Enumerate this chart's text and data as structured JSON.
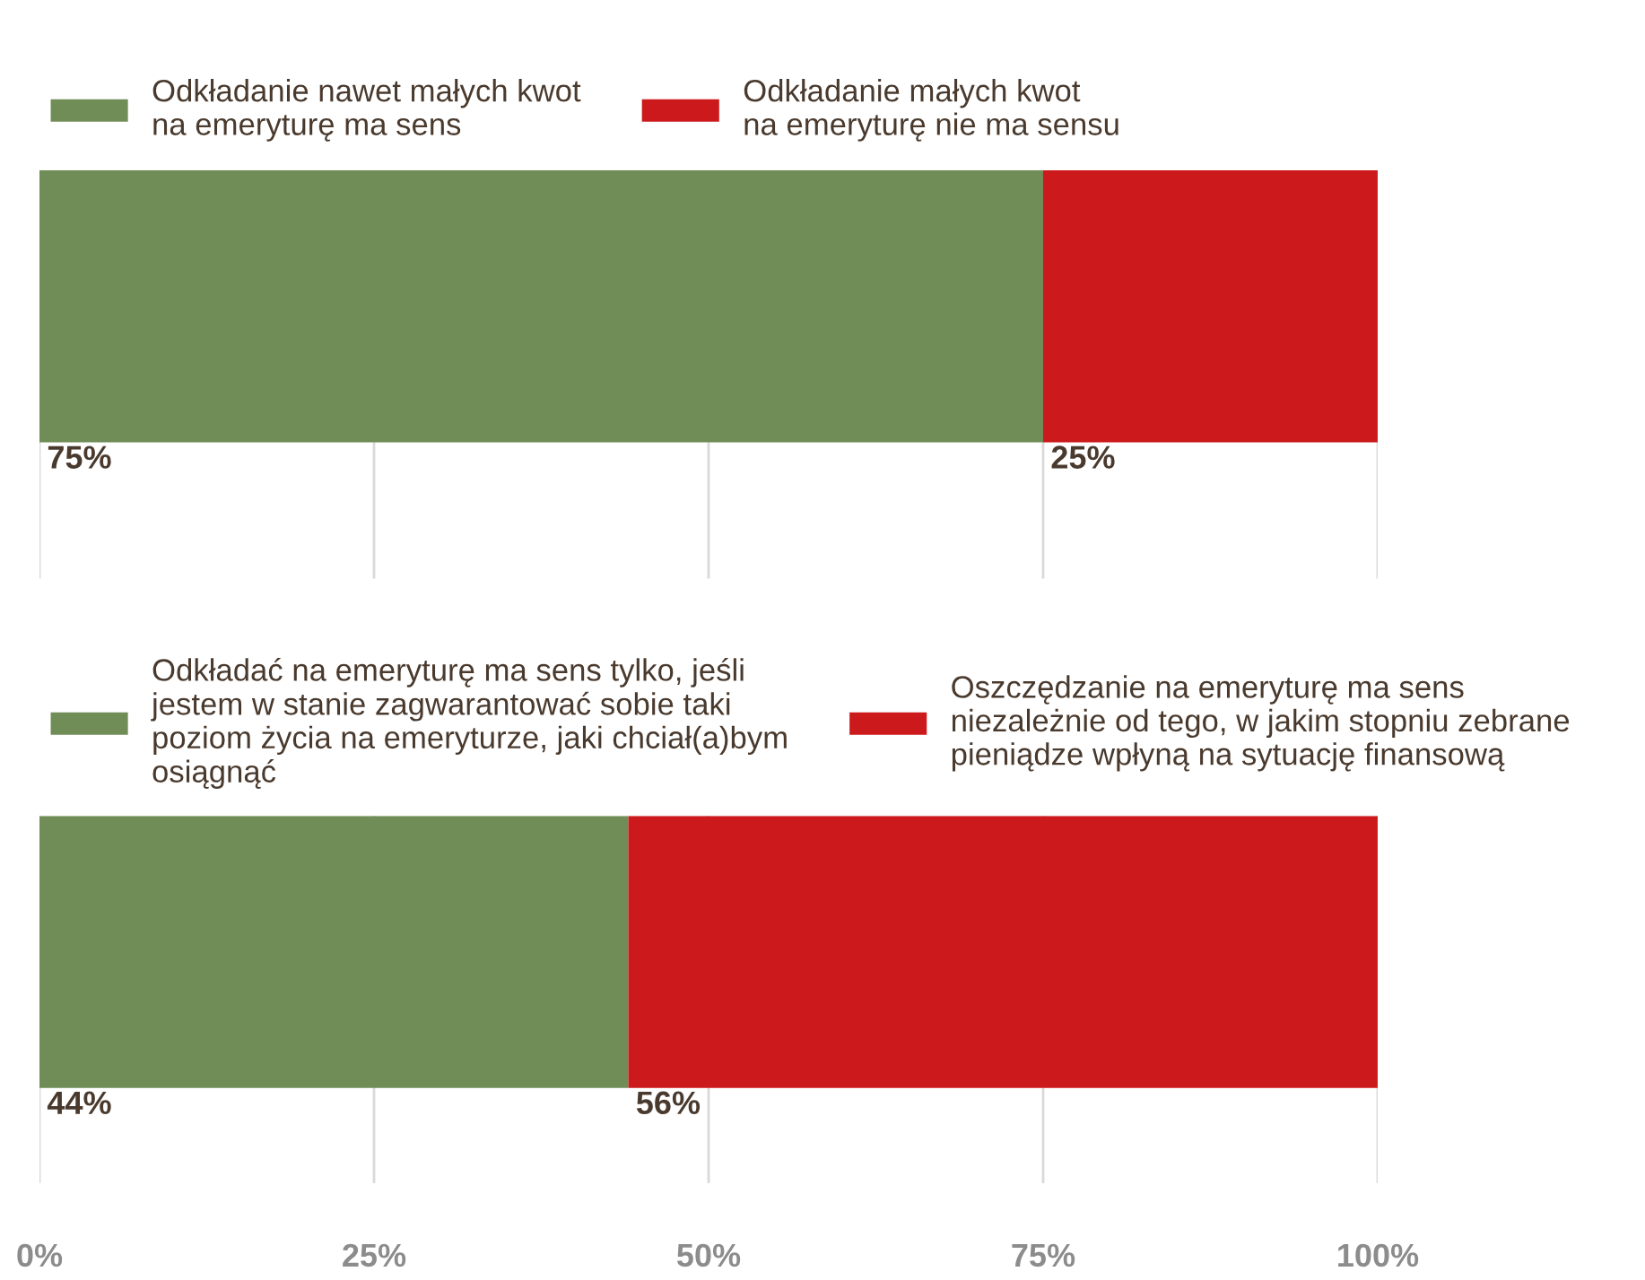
{
  "chart_data": [
    {
      "type": "bar",
      "orientation": "horizontal",
      "stacked": true,
      "categories": [
        null
      ],
      "xlim": [
        0,
        100
      ],
      "xticks": [
        {
          "value": 0,
          "label": null
        },
        {
          "value": 25,
          "label": null
        },
        {
          "value": 50,
          "label": null
        },
        {
          "value": 75,
          "label": null
        },
        {
          "value": 100,
          "label": null
        }
      ],
      "tick_labels": false,
      "grid": "x",
      "legend": "top",
      "series": [
        {
          "name": "Odkładanie nawet małych kwot\nna emeryturę ma sens",
          "color": "#718d57",
          "values": [
            75
          ],
          "value_labels": [
            "75%"
          ]
        },
        {
          "name": "Odkładanie małych kwot\nna emeryturę nie ma sensu",
          "color": "#cc1a1c",
          "values": [
            25
          ],
          "value_labels": [
            "25%"
          ]
        }
      ]
    },
    {
      "type": "bar",
      "orientation": "horizontal",
      "stacked": true,
      "categories": [
        null
      ],
      "xlim": [
        0,
        100
      ],
      "xticks": [
        {
          "value": 0,
          "label": "0%"
        },
        {
          "value": 25,
          "label": "25%"
        },
        {
          "value": 50,
          "label": "50%"
        },
        {
          "value": 75,
          "label": "75%"
        },
        {
          "value": 100,
          "label": "100%"
        }
      ],
      "tick_labels": "x",
      "grid": "x",
      "legend": "top",
      "series": [
        {
          "name": "Odkładać na emeryturę ma sens tylko, jeśli\njestem w stanie zagwarantować sobie taki\npoziom życia na emeryturze, jaki chciał(a)bym\nosiągnąć",
          "color": "#718d57",
          "values": [
            44
          ],
          "value_labels": [
            "44%"
          ]
        },
        {
          "name": "Oszczędzanie na emeryturę ma sens\nniezależnie od tego, w jakim stopniu zebrane\npieniądze wpłyną na sytuację finansową",
          "color": "#cc1a1c",
          "values": [
            56
          ],
          "value_labels": [
            "56%"
          ]
        }
      ]
    }
  ]
}
